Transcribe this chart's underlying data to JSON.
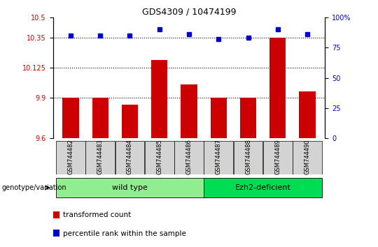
{
  "title": "GDS4309 / 10474199",
  "samples": [
    "GSM744482",
    "GSM744483",
    "GSM744484",
    "GSM744485",
    "GSM744486",
    "GSM744487",
    "GSM744488",
    "GSM744489",
    "GSM744490"
  ],
  "bar_values": [
    9.9,
    9.9,
    9.85,
    10.18,
    10.0,
    9.9,
    9.9,
    10.35,
    9.95
  ],
  "dot_values": [
    85,
    85,
    85,
    90,
    86,
    82,
    83,
    90,
    86
  ],
  "ylim_left": [
    9.6,
    10.5
  ],
  "ylim_right": [
    0,
    100
  ],
  "yticks_left": [
    9.6,
    9.9,
    10.125,
    10.35,
    10.5
  ],
  "ytick_labels_left": [
    "9.6",
    "9.9",
    "10.125",
    "10.35",
    "10.5"
  ],
  "yticks_right": [
    0,
    25,
    50,
    75,
    100
  ],
  "ytick_labels_right": [
    "0",
    "25",
    "50",
    "75",
    "100%"
  ],
  "hlines": [
    9.9,
    10.125,
    10.35
  ],
  "bar_color": "#cc0000",
  "dot_color": "#0000cc",
  "groups": [
    {
      "label": "wild type",
      "start": 0,
      "end": 5,
      "color": "#90ee90"
    },
    {
      "label": "Ezh2-deficient",
      "start": 5,
      "end": 9,
      "color": "#00dd55"
    }
  ],
  "group_row_label": "genotype/variation",
  "legend_items": [
    {
      "color": "#cc0000",
      "label": "transformed count"
    },
    {
      "color": "#0000cc",
      "label": "percentile rank within the sample"
    }
  ],
  "ax_bg": "#ffffff",
  "tick_label_color_left": "#cc0000",
  "tick_label_color_right": "#0000cc"
}
